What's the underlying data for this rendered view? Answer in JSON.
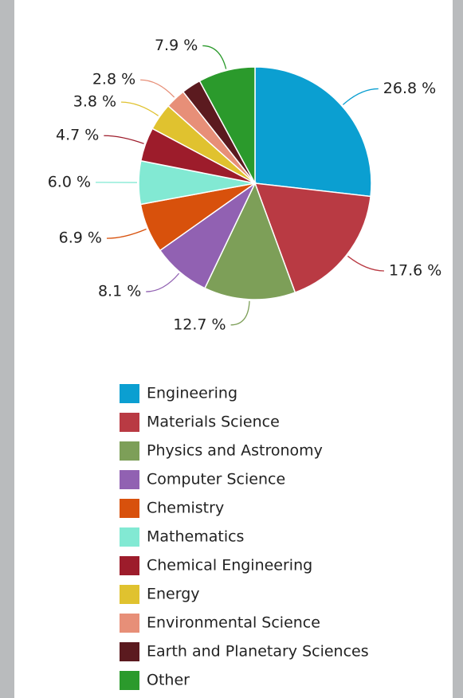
{
  "chart_data": {
    "type": "pie",
    "categories": [
      "Engineering",
      "Materials Science",
      "Physics and Astronomy",
      "Computer Science",
      "Chemistry",
      "Mathematics",
      "Chemical Engineering",
      "Energy",
      "Environmental Science",
      "Earth and Planetary Sciences",
      "Other"
    ],
    "values": [
      26.8,
      17.6,
      12.7,
      8.1,
      6.9,
      6.0,
      4.7,
      3.8,
      2.8,
      2.7,
      7.9
    ],
    "value_labels": [
      "26.8 %",
      "17.6 %",
      "12.7 %",
      "8.1 %",
      "6.9 %",
      "6.0 %",
      "4.7 %",
      "3.8 %",
      "2.8 %",
      null,
      "7.9 %"
    ],
    "colors": [
      "#0b9fd1",
      "#b93a43",
      "#7d9f58",
      "#9161b2",
      "#d8510c",
      "#82e9d3",
      "#9d1c2b",
      "#e0c22f",
      "#e78f78",
      "#5b1a1f",
      "#2b9a2c"
    ]
  }
}
